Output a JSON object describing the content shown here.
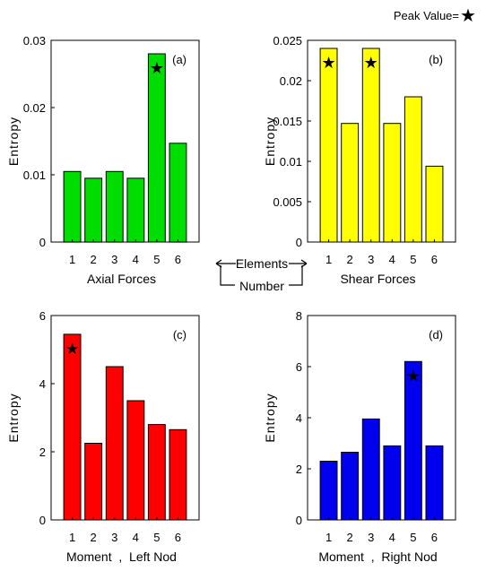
{
  "peak_legend": {
    "label": "Peak Value=",
    "marker": "★"
  },
  "center_note": {
    "line1": "Elements",
    "line2": "Number"
  },
  "chart_data": [
    {
      "type": "bar",
      "panel_tag": "(a)",
      "categories": [
        "1",
        "2",
        "3",
        "4",
        "5",
        "6"
      ],
      "values": [
        0.0105,
        0.0095,
        0.0105,
        0.0095,
        0.028,
        0.0147
      ],
      "ylim": [
        0,
        0.03
      ],
      "yticks": [
        "0",
        "0.01",
        "0.02",
        "0.03"
      ],
      "ytick_values": [
        0,
        0.01,
        0.02,
        0.03
      ],
      "ylabel": "Entropy",
      "xlabel": "Axial Forces",
      "bar_color": "#00dd00",
      "peaks": [
        4
      ],
      "star_color": "#000000"
    },
    {
      "type": "bar",
      "panel_tag": "(b)",
      "categories": [
        "1",
        "2",
        "3",
        "4",
        "5",
        "6"
      ],
      "values": [
        0.024,
        0.0147,
        0.024,
        0.0147,
        0.018,
        0.0094
      ],
      "ylim": [
        0,
        0.025
      ],
      "yticks": [
        "0",
        "0.005",
        "0.01",
        "0.015",
        "0.02",
        "0.025"
      ],
      "ytick_values": [
        0,
        0.005,
        0.01,
        0.015,
        0.02,
        0.025
      ],
      "ylabel": "Entropy",
      "xlabel": "Shear Forces",
      "bar_color": "#ffff00",
      "peaks": [
        0,
        2
      ],
      "star_color": "#000000"
    },
    {
      "type": "bar",
      "panel_tag": "(c)",
      "categories": [
        "1",
        "2",
        "3",
        "4",
        "5",
        "6"
      ],
      "values": [
        5.45,
        2.25,
        4.5,
        3.5,
        2.8,
        2.65
      ],
      "ylim": [
        0,
        6
      ],
      "yticks": [
        "0",
        "2",
        "4",
        "6"
      ],
      "ytick_values": [
        0,
        2,
        4,
        6
      ],
      "ylabel": "Entropy",
      "xlabel": "Moment  ,  Left Nod",
      "bar_color": "#ff0000",
      "peaks": [
        0
      ],
      "star_color": "#000000"
    },
    {
      "type": "bar",
      "panel_tag": "(d)",
      "categories": [
        "1",
        "2",
        "3",
        "4",
        "5",
        "6"
      ],
      "values": [
        2.3,
        2.65,
        3.95,
        2.9,
        6.2,
        2.9
      ],
      "ylim": [
        0,
        8
      ],
      "yticks": [
        "0",
        "2",
        "4",
        "6",
        "8"
      ],
      "ytick_values": [
        0,
        2,
        4,
        6,
        8
      ],
      "ylabel": "Entropy",
      "xlabel": "Moment  ,  Right Nod",
      "bar_color": "#0000ee",
      "peaks": [
        4
      ],
      "star_color": "#ffffff"
    }
  ]
}
